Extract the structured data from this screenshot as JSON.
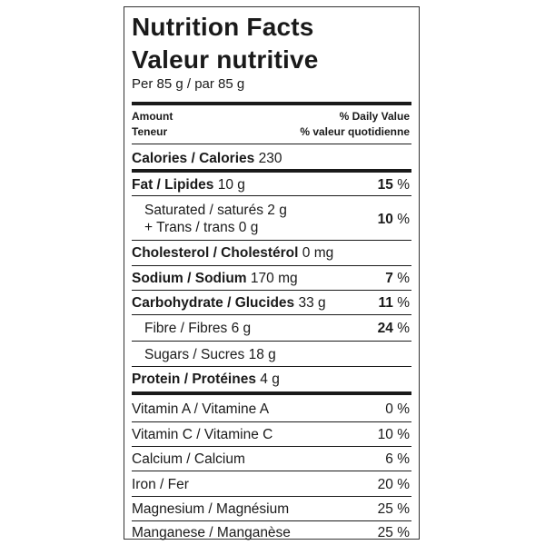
{
  "title_en": "Nutrition Facts",
  "title_fr": "Valeur nutritive",
  "serving": "Per 85 g / par 85 g",
  "header": {
    "amount": "Amount",
    "teneur": "Teneur",
    "dv_en": "% Daily Value",
    "dv_fr": "% valeur quotidienne"
  },
  "calories": {
    "label": "Calories / Calories",
    "value": "230"
  },
  "fat": {
    "label": "Fat / Lipides",
    "amount": "10 g",
    "pct_num": "15",
    "pct_sym": "%"
  },
  "saturated": {
    "label": "Saturated / saturés 2 g",
    "label2": "+ Trans / trans 0 g",
    "pct_num": "10",
    "pct_sym": "%"
  },
  "cholesterol": {
    "label": "Cholesterol / Cholestérol",
    "amount": "0 mg"
  },
  "sodium": {
    "label": "Sodium / Sodium",
    "amount": "170 mg",
    "pct_num": "7",
    "pct_sym": "%"
  },
  "carbohydrate": {
    "label": "Carbohydrate / Glucides",
    "amount": "33 g",
    "pct_num": "11",
    "pct_sym": "%"
  },
  "fibre": {
    "label": "Fibre / Fibres 6 g",
    "pct_num": "24",
    "pct_sym": "%"
  },
  "sugars": {
    "label": "Sugars / Sucres 18 g"
  },
  "protein": {
    "label": "Protein / Protéines",
    "amount": "4 g"
  },
  "vitamins": [
    {
      "label": "Vitamin A / Vitamine A",
      "pct": "0 %"
    },
    {
      "label": "Vitamin C / Vitamine C",
      "pct": "10 %"
    },
    {
      "label": "Calcium / Calcium",
      "pct": "6 %"
    },
    {
      "label": "Iron / Fer",
      "pct": "20 %"
    },
    {
      "label": "Magnesium / Magnésium",
      "pct": "25 %"
    },
    {
      "label": "Manganese / Manganèse",
      "pct": "25 %"
    }
  ]
}
